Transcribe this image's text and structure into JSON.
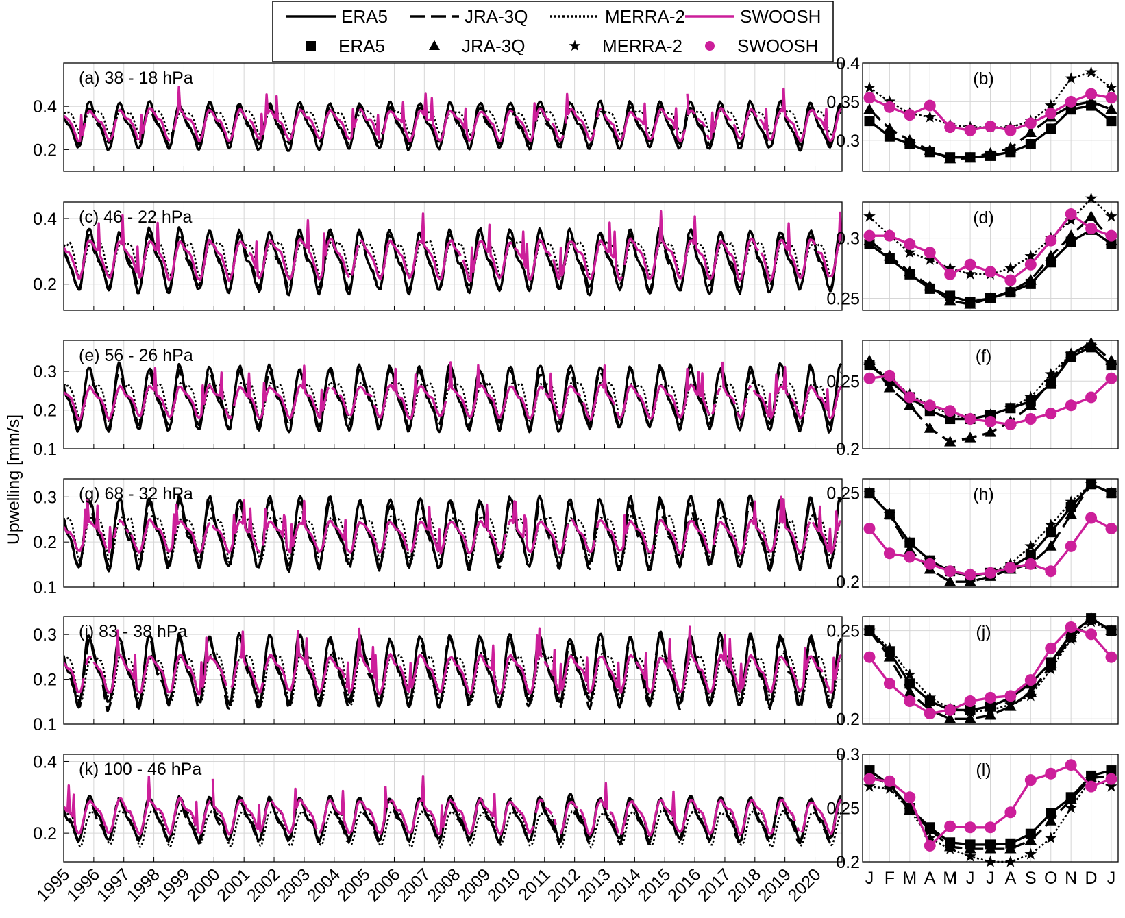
{
  "legend": {
    "lines": [
      {
        "label": "ERA5",
        "style": "solid",
        "color": "#000000"
      },
      {
        "label": "JRA-3Q",
        "style": "dashed",
        "color": "#000000"
      },
      {
        "label": "MERRA-2",
        "style": "dotted",
        "color": "#000000"
      },
      {
        "label": "SWOOSH",
        "style": "solid",
        "color": "#cc1f9a"
      }
    ],
    "markers": [
      {
        "label": "ERA5",
        "marker": "square",
        "color": "#000000"
      },
      {
        "label": "JRA-3Q",
        "marker": "triangle",
        "color": "#000000"
      },
      {
        "label": "MERRA-2",
        "marker": "star",
        "color": "#000000"
      },
      {
        "label": "SWOOSH",
        "marker": "circle",
        "color": "#cc1f9a"
      }
    ]
  },
  "ylabel": "Upwelling [mm/s]",
  "colors": {
    "swoosh": "#cc1f9a",
    "reanalysis": "#000000",
    "grid": "#d6d6d6"
  },
  "chart_data": [
    {
      "type": "line",
      "panel": "a",
      "label": "(a) 38 - 18 hPa",
      "xlabel": "",
      "x_ticks": [
        "1995",
        "1996",
        "1997",
        "1998",
        "1999",
        "2000",
        "2001",
        "2002",
        "2003",
        "2004",
        "2005",
        "2006",
        "2007",
        "2008",
        "2009",
        "2010",
        "2011",
        "2012",
        "2013",
        "2014",
        "2015",
        "2016",
        "2017",
        "2018",
        "2019",
        "2020"
      ],
      "xlim": [
        1995,
        2020.9
      ],
      "ylim": [
        0.1,
        0.6
      ],
      "yticks": [
        0.2,
        0.4
      ],
      "series": [
        {
          "name": "ERA5",
          "style": "solid",
          "mean": 0.31,
          "amp": 0.09
        },
        {
          "name": "JRA-3Q",
          "style": "dashed",
          "mean": 0.31,
          "amp": 0.07
        },
        {
          "name": "MERRA-2",
          "style": "dotted",
          "mean": 0.34,
          "amp": 0.05
        },
        {
          "name": "SWOOSH",
          "style": "solid",
          "mean": 0.32,
          "amp": 0.06
        }
      ]
    },
    {
      "type": "line",
      "panel": "b",
      "label": "(b)",
      "x_ticks": [
        "J",
        "F",
        "M",
        "A",
        "M",
        "J",
        "J",
        "A",
        "S",
        "O",
        "N",
        "D",
        "J"
      ],
      "ylim": [
        0.26,
        0.4
      ],
      "yticks": [
        0.3,
        0.35,
        0.4
      ],
      "ytick_labels": [
        "0.3",
        "0.35",
        "0.4"
      ],
      "series": [
        {
          "name": "ERA5",
          "values": [
            0.325,
            0.305,
            0.295,
            0.285,
            0.278,
            0.278,
            0.28,
            0.285,
            0.295,
            0.315,
            0.34,
            0.345,
            0.325
          ]
        },
        {
          "name": "JRA-3Q",
          "values": [
            0.34,
            0.315,
            0.3,
            0.287,
            0.276,
            0.277,
            0.283,
            0.29,
            0.31,
            0.33,
            0.345,
            0.35,
            0.34
          ]
        },
        {
          "name": "MERRA-2",
          "values": [
            0.368,
            0.35,
            0.335,
            0.33,
            0.32,
            0.317,
            0.317,
            0.317,
            0.325,
            0.345,
            0.38,
            0.388,
            0.368
          ]
        },
        {
          "name": "SWOOSH",
          "values": [
            0.355,
            0.343,
            0.333,
            0.345,
            0.317,
            0.313,
            0.318,
            0.313,
            0.322,
            0.335,
            0.35,
            0.36,
            0.355
          ]
        }
      ]
    },
    {
      "type": "line",
      "panel": "c",
      "label": "(c) 46 - 22 hPa",
      "xlim": [
        1995,
        2020.9
      ],
      "ylim": [
        0.12,
        0.45
      ],
      "yticks": [
        0.2,
        0.4
      ],
      "series": [
        {
          "name": "ERA5",
          "style": "solid",
          "mean": 0.27,
          "amp": 0.08
        },
        {
          "name": "JRA-3Q",
          "style": "dashed",
          "mean": 0.27,
          "amp": 0.07
        },
        {
          "name": "MERRA-2",
          "style": "dotted",
          "mean": 0.29,
          "amp": 0.05
        },
        {
          "name": "SWOOSH",
          "style": "solid",
          "mean": 0.28,
          "amp": 0.05
        }
      ]
    },
    {
      "type": "line",
      "panel": "d",
      "label": "(d)",
      "x_ticks": [
        "J",
        "F",
        "M",
        "A",
        "M",
        "J",
        "J",
        "A",
        "S",
        "O",
        "N",
        "D",
        "J"
      ],
      "ylim": [
        0.24,
        0.33
      ],
      "yticks": [
        0.25,
        0.3
      ],
      "ytick_labels": [
        "0.25",
        "0.3"
      ],
      "series": [
        {
          "name": "ERA5",
          "values": [
            0.295,
            0.283,
            0.27,
            0.258,
            0.252,
            0.247,
            0.25,
            0.255,
            0.262,
            0.28,
            0.297,
            0.307,
            0.295
          ]
        },
        {
          "name": "JRA-3Q",
          "values": [
            0.298,
            0.285,
            0.272,
            0.26,
            0.248,
            0.245,
            0.25,
            0.256,
            0.265,
            0.285,
            0.302,
            0.318,
            0.298
          ]
        },
        {
          "name": "MERRA-2",
          "values": [
            0.318,
            0.302,
            0.288,
            0.282,
            0.275,
            0.27,
            0.27,
            0.275,
            0.285,
            0.3,
            0.315,
            0.333,
            0.318
          ]
        },
        {
          "name": "SWOOSH",
          "values": [
            0.302,
            0.302,
            0.295,
            0.288,
            0.27,
            0.278,
            0.272,
            0.265,
            0.278,
            0.298,
            0.32,
            0.308,
            0.302
          ]
        }
      ]
    },
    {
      "type": "line",
      "panel": "e",
      "label": "(e) 56 - 26 hPa",
      "xlim": [
        1995,
        2020.9
      ],
      "ylim": [
        0.1,
        0.38
      ],
      "yticks": [
        0.1,
        0.2,
        0.3
      ],
      "series": [
        {
          "name": "ERA5",
          "style": "solid",
          "mean": 0.23,
          "amp": 0.07
        },
        {
          "name": "JRA-3Q",
          "style": "dashed",
          "mean": 0.23,
          "amp": 0.06
        },
        {
          "name": "MERRA-2",
          "style": "dotted",
          "mean": 0.235,
          "amp": 0.045
        },
        {
          "name": "SWOOSH",
          "style": "solid",
          "mean": 0.225,
          "amp": 0.035
        }
      ]
    },
    {
      "type": "line",
      "panel": "f",
      "label": "(f)",
      "x_ticks": [
        "J",
        "F",
        "M",
        "A",
        "M",
        "J",
        "J",
        "A",
        "S",
        "O",
        "N",
        "D",
        "J"
      ],
      "ylim": [
        0.2,
        0.28
      ],
      "yticks": [
        0.2,
        0.25
      ],
      "ytick_labels": [
        "0.2",
        "0.25"
      ],
      "series": [
        {
          "name": "ERA5",
          "values": [
            0.262,
            0.25,
            0.238,
            0.228,
            0.222,
            0.222,
            0.225,
            0.23,
            0.235,
            0.248,
            0.268,
            0.275,
            0.262
          ]
        },
        {
          "name": "JRA-3Q",
          "values": [
            0.265,
            0.245,
            0.232,
            0.215,
            0.205,
            0.208,
            0.212,
            0.22,
            0.232,
            0.25,
            0.27,
            0.278,
            0.265
          ]
        },
        {
          "name": "MERRA-2",
          "values": [
            0.262,
            0.252,
            0.24,
            0.232,
            0.225,
            0.222,
            0.225,
            0.23,
            0.238,
            0.255,
            0.27,
            0.276,
            0.262
          ]
        },
        {
          "name": "SWOOSH",
          "values": [
            0.252,
            0.254,
            0.238,
            0.232,
            0.228,
            0.222,
            0.22,
            0.218,
            0.222,
            0.226,
            0.232,
            0.238,
            0.252
          ]
        }
      ]
    },
    {
      "type": "line",
      "panel": "g",
      "label": "(g) 68 - 32 hPa",
      "xlim": [
        1995,
        2020.9
      ],
      "ylim": [
        0.1,
        0.34
      ],
      "yticks": [
        0.1,
        0.2,
        0.3
      ],
      "series": [
        {
          "name": "ERA5",
          "style": "solid",
          "mean": 0.22,
          "amp": 0.065
        },
        {
          "name": "JRA-3Q",
          "style": "dashed",
          "mean": 0.215,
          "amp": 0.06
        },
        {
          "name": "MERRA-2",
          "style": "dotted",
          "mean": 0.22,
          "amp": 0.045
        },
        {
          "name": "SWOOSH",
          "style": "solid",
          "mean": 0.215,
          "amp": 0.03
        }
      ]
    },
    {
      "type": "line",
      "panel": "h",
      "label": "(h)",
      "x_ticks": [
        "J",
        "F",
        "M",
        "A",
        "M",
        "J",
        "J",
        "A",
        "S",
        "O",
        "N",
        "D",
        "J"
      ],
      "ylim": [
        0.197,
        0.258
      ],
      "yticks": [
        0.2,
        0.25
      ],
      "ytick_labels": [
        "0.2",
        "0.25"
      ],
      "series": [
        {
          "name": "ERA5",
          "values": [
            0.25,
            0.238,
            0.222,
            0.212,
            0.206,
            0.203,
            0.205,
            0.208,
            0.215,
            0.228,
            0.242,
            0.255,
            0.25
          ]
        },
        {
          "name": "JRA-3Q",
          "values": [
            0.25,
            0.238,
            0.218,
            0.207,
            0.2,
            0.2,
            0.203,
            0.207,
            0.21,
            0.22,
            0.238,
            0.255,
            0.25
          ]
        },
        {
          "name": "MERRA-2",
          "values": [
            0.25,
            0.238,
            0.222,
            0.212,
            0.206,
            0.204,
            0.205,
            0.21,
            0.22,
            0.232,
            0.245,
            0.255,
            0.25
          ]
        },
        {
          "name": "SWOOSH",
          "values": [
            0.23,
            0.216,
            0.214,
            0.21,
            0.206,
            0.204,
            0.205,
            0.208,
            0.21,
            0.206,
            0.22,
            0.236,
            0.23
          ]
        }
      ]
    },
    {
      "type": "line",
      "panel": "i",
      "label": "(i) 83 - 38 hPa",
      "xlim": [
        1995,
        2020.9
      ],
      "ylim": [
        0.1,
        0.34
      ],
      "yticks": [
        0.1,
        0.2,
        0.3
      ],
      "series": [
        {
          "name": "ERA5",
          "style": "solid",
          "mean": 0.22,
          "amp": 0.065
        },
        {
          "name": "JRA-3Q",
          "style": "dashed",
          "mean": 0.215,
          "amp": 0.065
        },
        {
          "name": "MERRA-2",
          "style": "dotted",
          "mean": 0.215,
          "amp": 0.05
        },
        {
          "name": "SWOOSH",
          "style": "solid",
          "mean": 0.215,
          "amp": 0.035
        }
      ]
    },
    {
      "type": "line",
      "panel": "j",
      "label": "(j)",
      "x_ticks": [
        "J",
        "F",
        "M",
        "A",
        "M",
        "J",
        "J",
        "A",
        "S",
        "O",
        "N",
        "D",
        "J"
      ],
      "ylim": [
        0.197,
        0.258
      ],
      "yticks": [
        0.2,
        0.25
      ],
      "ytick_labels": [
        "0.2",
        "0.25"
      ],
      "series": [
        {
          "name": "ERA5",
          "values": [
            0.25,
            0.238,
            0.22,
            0.21,
            0.205,
            0.205,
            0.207,
            0.212,
            0.22,
            0.232,
            0.248,
            0.257,
            0.25
          ]
        },
        {
          "name": "JRA-3Q",
          "values": [
            0.25,
            0.235,
            0.215,
            0.205,
            0.2,
            0.2,
            0.202,
            0.207,
            0.215,
            0.23,
            0.246,
            0.257,
            0.25
          ]
        },
        {
          "name": "MERRA-2",
          "values": [
            0.25,
            0.24,
            0.225,
            0.212,
            0.206,
            0.204,
            0.205,
            0.208,
            0.213,
            0.228,
            0.245,
            0.255,
            0.25
          ]
        },
        {
          "name": "SWOOSH",
          "values": [
            0.235,
            0.22,
            0.21,
            0.203,
            0.205,
            0.21,
            0.212,
            0.213,
            0.222,
            0.24,
            0.252,
            0.248,
            0.235
          ]
        }
      ]
    },
    {
      "type": "line",
      "panel": "k",
      "label": "(k) 100 - 46 hPa",
      "x_ticks": [
        "1995",
        "1996",
        "1997",
        "1998",
        "1999",
        "2000",
        "2001",
        "2002",
        "2003",
        "2004",
        "2005",
        "2006",
        "2007",
        "2008",
        "2009",
        "2010",
        "2011",
        "2012",
        "2013",
        "2014",
        "2015",
        "2016",
        "2017",
        "2018",
        "2019",
        "2020"
      ],
      "xlim": [
        1995,
        2020.9
      ],
      "ylim": [
        0.12,
        0.42
      ],
      "yticks": [
        0.2,
        0.4
      ],
      "series": [
        {
          "name": "ERA5",
          "style": "solid",
          "mean": 0.24,
          "amp": 0.05
        },
        {
          "name": "JRA-3Q",
          "style": "dashed",
          "mean": 0.235,
          "amp": 0.05
        },
        {
          "name": "MERRA-2",
          "style": "dotted",
          "mean": 0.225,
          "amp": 0.045
        },
        {
          "name": "SWOOSH",
          "style": "solid",
          "mean": 0.25,
          "amp": 0.04
        }
      ]
    },
    {
      "type": "line",
      "panel": "l",
      "label": "(l)",
      "x_ticks": [
        "J",
        "F",
        "M",
        "A",
        "M",
        "J",
        "J",
        "A",
        "S",
        "O",
        "N",
        "D",
        "J"
      ],
      "ylim": [
        0.2,
        0.3
      ],
      "yticks": [
        0.2,
        0.25,
        0.3
      ],
      "ytick_labels": [
        "0.2",
        "0.25",
        "0.3"
      ],
      "series": [
        {
          "name": "ERA5",
          "values": [
            0.285,
            0.272,
            0.25,
            0.232,
            0.218,
            0.216,
            0.216,
            0.217,
            0.226,
            0.245,
            0.26,
            0.28,
            0.285
          ]
        },
        {
          "name": "JRA-3Q",
          "values": [
            0.28,
            0.272,
            0.248,
            0.23,
            0.214,
            0.212,
            0.212,
            0.212,
            0.22,
            0.238,
            0.258,
            0.278,
            0.28
          ]
        },
        {
          "name": "MERRA-2",
          "values": [
            0.27,
            0.268,
            0.248,
            0.222,
            0.212,
            0.205,
            0.2,
            0.2,
            0.207,
            0.222,
            0.25,
            0.277,
            0.27
          ]
        },
        {
          "name": "SWOOSH",
          "values": [
            0.277,
            0.275,
            0.26,
            0.215,
            0.233,
            0.232,
            0.232,
            0.246,
            0.276,
            0.282,
            0.29,
            0.27,
            0.277
          ]
        }
      ]
    }
  ]
}
